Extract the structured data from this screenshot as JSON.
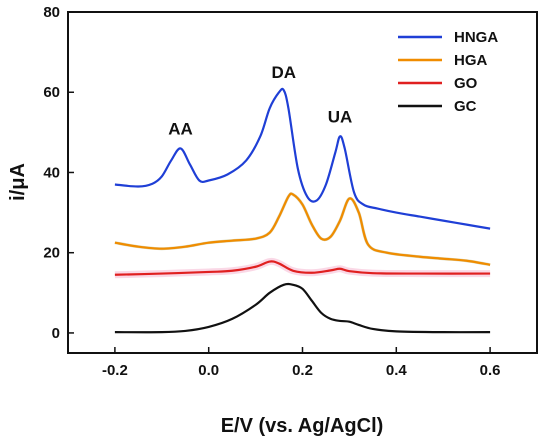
{
  "chart_data": {
    "type": "line",
    "xlabel": "E/V (vs. Ag/AgCl)",
    "ylabel": "i/μA",
    "xlim": [
      -0.3,
      0.7
    ],
    "ylim": [
      -5,
      80
    ],
    "xticks": [
      -0.2,
      0.0,
      0.2,
      0.4,
      0.6
    ],
    "yticks": [
      0,
      20,
      40,
      60,
      80
    ],
    "xtick_labels": [
      "-0.2",
      "0.0",
      "0.2",
      "0.4",
      "0.6"
    ],
    "ytick_labels": [
      "0",
      "20",
      "40",
      "60",
      "80"
    ],
    "legend_position": "top-right",
    "annotations": [
      {
        "text": "AA",
        "x": -0.06,
        "y": 47
      },
      {
        "text": "DA",
        "x": 0.16,
        "y": 61
      },
      {
        "text": "UA",
        "x": 0.28,
        "y": 50
      }
    ],
    "series": [
      {
        "name": "HNGA",
        "color": "#1f3fd6",
        "x": [
          -0.2,
          -0.15,
          -0.12,
          -0.1,
          -0.08,
          -0.06,
          -0.04,
          -0.02,
          0.0,
          0.04,
          0.08,
          0.11,
          0.13,
          0.15,
          0.16,
          0.17,
          0.19,
          0.21,
          0.23,
          0.25,
          0.27,
          0.28,
          0.29,
          0.31,
          0.33,
          0.36,
          0.4,
          0.45,
          0.5,
          0.55,
          0.6
        ],
        "y": [
          37,
          36.5,
          37.2,
          39,
          43,
          46,
          42,
          38,
          38,
          39.5,
          43,
          49,
          56,
          60,
          60.5,
          56,
          41,
          34,
          33,
          37,
          45,
          49,
          46,
          35,
          32,
          31,
          30,
          29,
          28,
          27,
          26
        ]
      },
      {
        "name": "HGA",
        "color": "#f08c00",
        "x": [
          -0.2,
          -0.15,
          -0.1,
          -0.05,
          0.0,
          0.05,
          0.1,
          0.13,
          0.15,
          0.17,
          0.18,
          0.2,
          0.22,
          0.24,
          0.26,
          0.28,
          0.3,
          0.32,
          0.34,
          0.38,
          0.45,
          0.5,
          0.55,
          0.6
        ],
        "y": [
          22.5,
          21.5,
          21,
          21.5,
          22.5,
          23,
          23.5,
          25,
          29,
          34,
          34.5,
          32,
          27,
          23.5,
          24,
          28,
          33.5,
          30,
          22,
          20,
          19,
          18.5,
          18,
          17
        ]
      },
      {
        "name": "GO",
        "color": "#e02020",
        "x": [
          -0.2,
          -0.1,
          0.0,
          0.05,
          0.1,
          0.13,
          0.15,
          0.18,
          0.22,
          0.26,
          0.28,
          0.3,
          0.35,
          0.45,
          0.6
        ],
        "y": [
          14.5,
          14.8,
          15.2,
          15.5,
          16.5,
          17.8,
          17.3,
          15.5,
          15,
          15.6,
          16,
          15.4,
          14.9,
          14.8,
          14.8
        ]
      },
      {
        "name": "GC",
        "color": "#111111",
        "x": [
          -0.2,
          -0.1,
          -0.05,
          0.0,
          0.05,
          0.1,
          0.13,
          0.16,
          0.18,
          0.2,
          0.22,
          0.24,
          0.26,
          0.28,
          0.3,
          0.32,
          0.35,
          0.4,
          0.5,
          0.6
        ],
        "y": [
          0.2,
          0.2,
          0.5,
          1.5,
          3.5,
          7,
          10,
          12,
          12,
          11,
          8,
          5,
          3.5,
          3,
          2.8,
          2,
          1,
          0.4,
          0.2,
          0.2
        ]
      }
    ]
  }
}
